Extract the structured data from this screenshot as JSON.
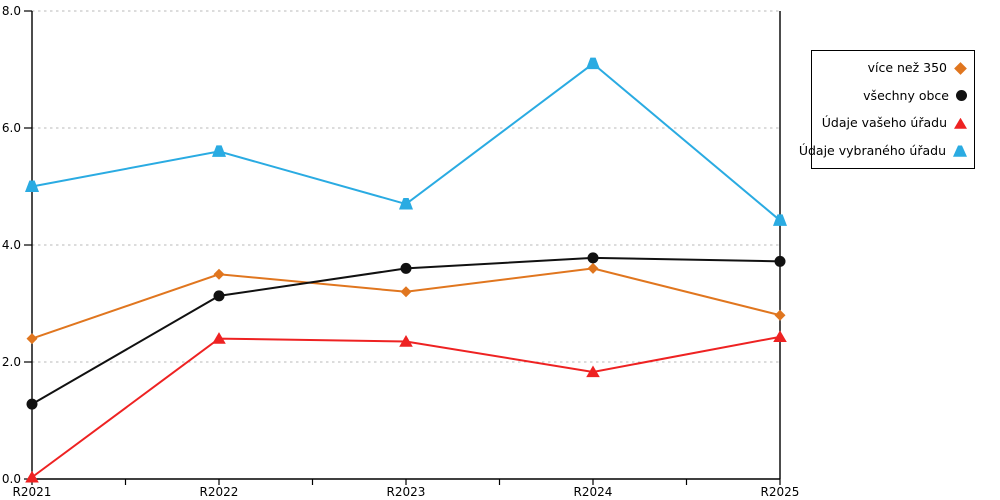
{
  "chart_data": {
    "type": "line",
    "title": "",
    "xlabel": "",
    "ylabel": "",
    "categories": [
      "R2021",
      "R2022",
      "R2023",
      "R2024",
      "R2025"
    ],
    "series": [
      {
        "name": "více než 350",
        "marker": "diamond",
        "color": "#e0761f",
        "values": [
          2.4,
          3.5,
          3.2,
          3.6,
          2.8
        ]
      },
      {
        "name": "všechny obce",
        "marker": "circle",
        "color": "#111111",
        "values": [
          1.28,
          3.13,
          3.6,
          3.78,
          3.72
        ]
      },
      {
        "name": "Údaje vašeho úřadu",
        "marker": "triangle",
        "color": "#ee2222",
        "values": [
          0.03,
          2.4,
          2.35,
          1.83,
          2.43
        ]
      },
      {
        "name": "Údaje vybraného úřadu",
        "marker": "triangle-flat",
        "color": "#2aabe2",
        "values": [
          5.0,
          5.6,
          4.7,
          7.1,
          4.42
        ]
      }
    ],
    "ylim": [
      0,
      8
    ],
    "y_ticks": [
      0,
      2,
      4,
      6,
      8
    ],
    "y_tick_labels": [
      "0.0",
      "2.0",
      "4.0",
      "6.0",
      "8.0"
    ],
    "x_minor_ticks_per_interval": 1,
    "grid": "horizontal-dashed",
    "gridline_color": "#b9b9b9",
    "axis_color": "#000000",
    "legend_position": "right-box"
  }
}
